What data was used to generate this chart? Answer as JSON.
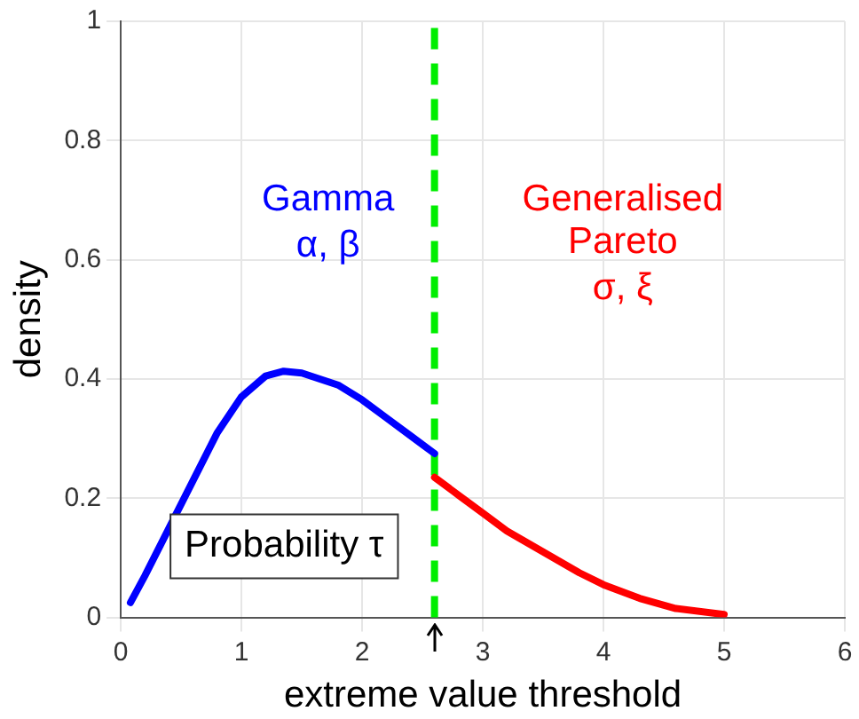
{
  "chart_data": {
    "type": "line",
    "xlabel": "extreme value threshold",
    "ylabel": "density",
    "xlim": [
      0,
      6
    ],
    "xticks": [
      0,
      1,
      2,
      3,
      4,
      5,
      6
    ],
    "ylim": [
      0,
      1
    ],
    "yticks": [
      0,
      0.2,
      0.4,
      0.6,
      0.8,
      1
    ],
    "grid": true,
    "series": [
      {
        "name": "Gamma",
        "color": "#0000ff",
        "x": [
          0.08,
          0.2,
          0.4,
          0.6,
          0.8,
          1.0,
          1.2,
          1.35,
          1.5,
          1.8,
          2.0,
          2.2,
          2.4,
          2.6
        ],
        "values": [
          0.025,
          0.07,
          0.15,
          0.23,
          0.31,
          0.37,
          0.405,
          0.413,
          0.41,
          0.39,
          0.365,
          0.335,
          0.305,
          0.275
        ]
      },
      {
        "name": "Generalised Pareto",
        "color": "#ff0000",
        "x": [
          2.6,
          2.8,
          3.0,
          3.2,
          3.5,
          3.8,
          4.0,
          4.3,
          4.6,
          5.0
        ],
        "values": [
          0.235,
          0.205,
          0.175,
          0.145,
          0.11,
          0.075,
          0.055,
          0.032,
          0.015,
          0.005
        ]
      }
    ],
    "ref_lines": [
      {
        "axis": "x",
        "value": 2.6,
        "color": "#00ee00",
        "line_style": "dashed"
      }
    ],
    "annotations": [
      "α, β",
      "σ, ξ",
      "Probability τ"
    ]
  }
}
